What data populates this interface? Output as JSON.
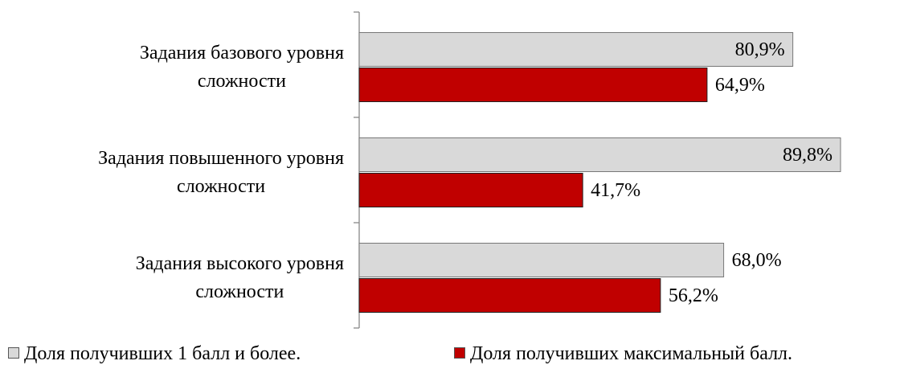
{
  "chart_data": {
    "type": "bar",
    "orientation": "horizontal",
    "categories": [
      "Задания базового уровня\nсложности",
      "Задания повышенного уровня\nсложности",
      "Задания высокого уровня\nсложности"
    ],
    "series": [
      {
        "name": "Доля получивших 1 балл и более.",
        "color": "#d9d9d9",
        "values": [
          80.9,
          89.8,
          68.0
        ],
        "value_labels": [
          "80,9%",
          "89,8%",
          "68,0%"
        ]
      },
      {
        "name": "Доля получивших максимальный балл.",
        "color": "#c00000",
        "values": [
          64.9,
          41.7,
          56.2
        ],
        "value_labels": [
          "64,9%",
          "41,7%",
          "56,2%"
        ]
      }
    ],
    "legend": "bottom"
  }
}
